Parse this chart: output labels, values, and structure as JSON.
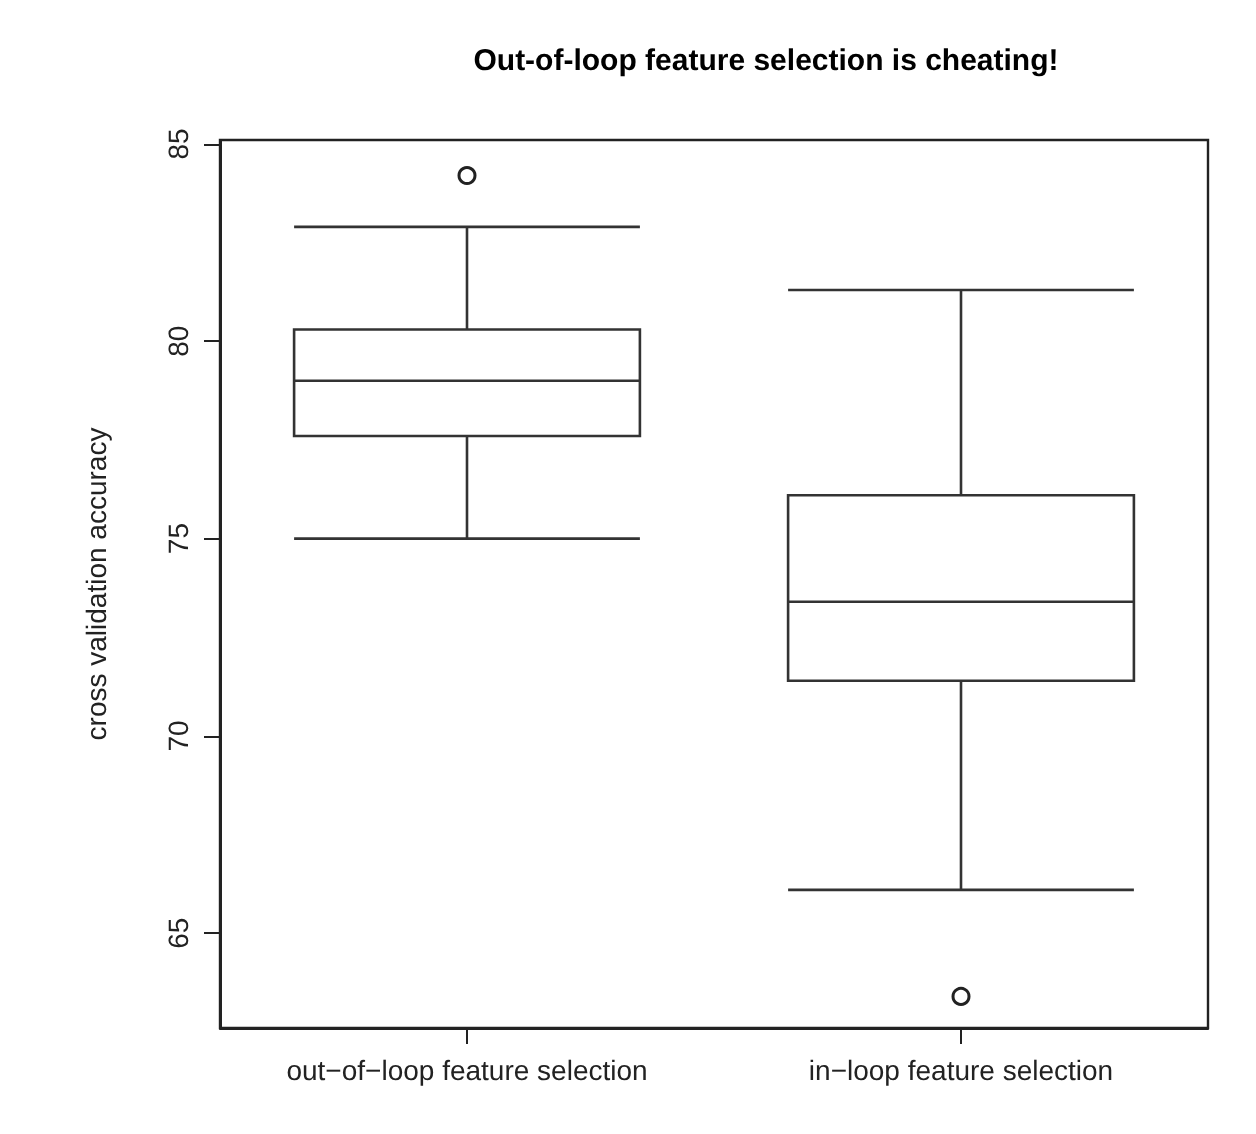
{
  "chart_data": {
    "type": "box",
    "title": "Out-of-loop feature selection is cheating!",
    "ylabel": "cross validation accuracy",
    "categories": [
      "out−of−loop feature selection",
      "in−loop feature selection"
    ],
    "boxes": [
      {
        "low": 75.0,
        "q1": 77.6,
        "median": 79.0,
        "q3": 80.3,
        "high": 82.9,
        "outliers": [
          84.2
        ]
      },
      {
        "low": 66.1,
        "q1": 71.4,
        "median": 73.4,
        "q3": 76.1,
        "high": 81.3,
        "outliers": [
          63.4
        ]
      }
    ],
    "ylim": [
      62.6,
      85.1
    ],
    "yticks": [
      65,
      70,
      75,
      80,
      85
    ],
    "grid": false
  }
}
